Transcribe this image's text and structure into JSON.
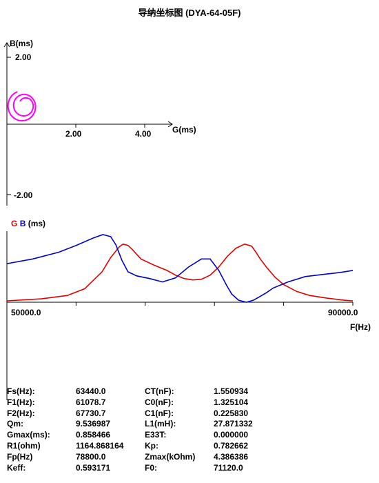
{
  "title": "导纳坐标图 (DYA-64-05F)",
  "admittance": {
    "x_axis_label": "G(ms)",
    "y_axis_label": "B(ms)",
    "x_ticks": [
      "2.00",
      "4.00"
    ],
    "y_ticks": [
      "2.00",
      "-2.00"
    ],
    "curve_color": "#ff00ff"
  },
  "chart_data": {
    "type": "line",
    "legend_g": "G",
    "legend_b": "B",
    "legend_unit": "(ms)",
    "xlabel": "F(Hz)",
    "x_tick_min": "50000.0",
    "x_tick_max": "90000.0",
    "xlim": [
      50000,
      90000
    ],
    "series": [
      {
        "name": "G",
        "color": "#e00000",
        "x": [
          50000,
          54000,
          57000,
          59000,
          61000,
          62000,
          63000,
          63440,
          64000,
          64500,
          65500,
          67000,
          68500,
          69500,
          70500,
          71500,
          72500,
          73500,
          74500,
          75500,
          76500,
          77500,
          78300,
          78800,
          79300,
          80000,
          81000,
          82000,
          83500,
          85000,
          87000,
          89000,
          90000
        ],
        "y": [
          0.02,
          0.05,
          0.1,
          0.2,
          0.45,
          0.66,
          0.82,
          0.86,
          0.84,
          0.78,
          0.64,
          0.55,
          0.47,
          0.4,
          0.35,
          0.33,
          0.34,
          0.4,
          0.52,
          0.68,
          0.8,
          0.86,
          0.83,
          0.74,
          0.64,
          0.52,
          0.37,
          0.26,
          0.16,
          0.1,
          0.06,
          0.03,
          0.02
        ]
      },
      {
        "name": "B",
        "color": "#0000cc",
        "x": [
          50000,
          53000,
          56000,
          58000,
          60000,
          61100,
          62000,
          62600,
          63300,
          64000,
          65000,
          66500,
          68000,
          69500,
          71000,
          72500,
          73500,
          74500,
          75400,
          76000,
          76800,
          77700,
          78500,
          79200,
          80000,
          80800,
          82500,
          84500,
          86500,
          88500,
          90000
        ],
        "y": [
          0.57,
          0.64,
          0.74,
          0.84,
          0.95,
          1.0,
          0.97,
          0.85,
          0.62,
          0.45,
          0.39,
          0.35,
          0.3,
          0.36,
          0.52,
          0.64,
          0.64,
          0.47,
          0.25,
          0.12,
          0.03,
          0.0,
          0.03,
          0.08,
          0.14,
          0.21,
          0.3,
          0.38,
          0.41,
          0.44,
          0.47
        ]
      }
    ]
  },
  "params": [
    [
      "Fs(Hz):",
      "63440.0",
      "CT(nF):",
      "1.550934"
    ],
    [
      "F1(Hz):",
      "61078.7",
      "C0(nF):",
      "1.325104"
    ],
    [
      "F2(Hz):",
      "67730.7",
      "C1(nF):",
      "0.225830"
    ],
    [
      "Qm:",
      "9.536987",
      "L1(mH):",
      "27.871332"
    ],
    [
      "Gmax(ms):",
      "0.858466",
      "E33T:",
      "0.000000"
    ],
    [
      "R1(ohm)",
      "1164.868164",
      "Kp:",
      "0.782662"
    ],
    [
      "Fp(Hz)",
      "78800.0",
      "Zmax(kOhm)",
      "4.386386"
    ],
    [
      "Keff:",
      "0.593171",
      "F0:",
      "71120.0"
    ]
  ]
}
